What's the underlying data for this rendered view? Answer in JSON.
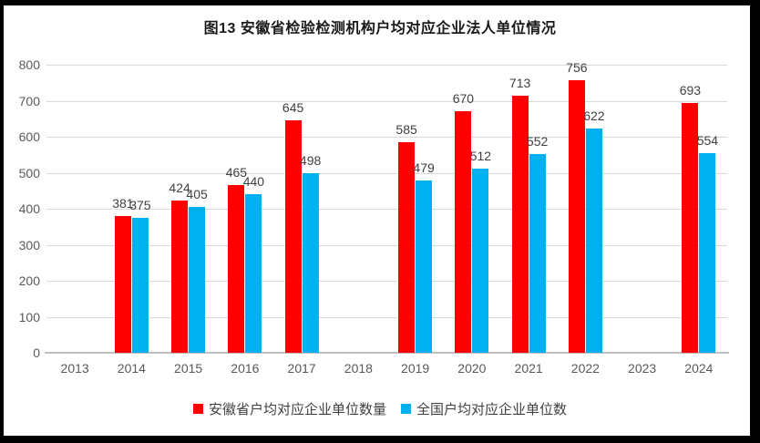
{
  "window": {
    "background_color": "#ffffff",
    "frame_color": "#000000"
  },
  "chart_data": {
    "type": "bar",
    "title": "图13 安徽省检验检测机构户均对应企业法人单位情况",
    "categories": [
      "2013",
      "2014",
      "2015",
      "2016",
      "2017",
      "2018",
      "2019",
      "2020",
      "2021",
      "2022",
      "2023",
      "2024"
    ],
    "series": [
      {
        "name": "安徽省户均对应企业单位数量",
        "color": "#ff0000",
        "values": [
          null,
          381,
          424,
          465,
          645,
          null,
          585,
          670,
          713,
          756,
          null,
          693
        ]
      },
      {
        "name": "全国户均对应企业单位数",
        "color": "#00b0f0",
        "values": [
          null,
          375,
          405,
          440,
          498,
          null,
          479,
          512,
          552,
          622,
          null,
          554
        ]
      }
    ],
    "xlabel": "",
    "ylabel": "",
    "ylim": [
      0,
      800
    ],
    "ytick_step": 100,
    "grid": true,
    "data_labels": true,
    "legend_position": "bottom",
    "colors": {
      "grid": "#d9d9d9",
      "axis": "#bfbfbf",
      "tick_label": "#595959",
      "data_label": "#404040",
      "title": "#1a1a1a"
    }
  }
}
